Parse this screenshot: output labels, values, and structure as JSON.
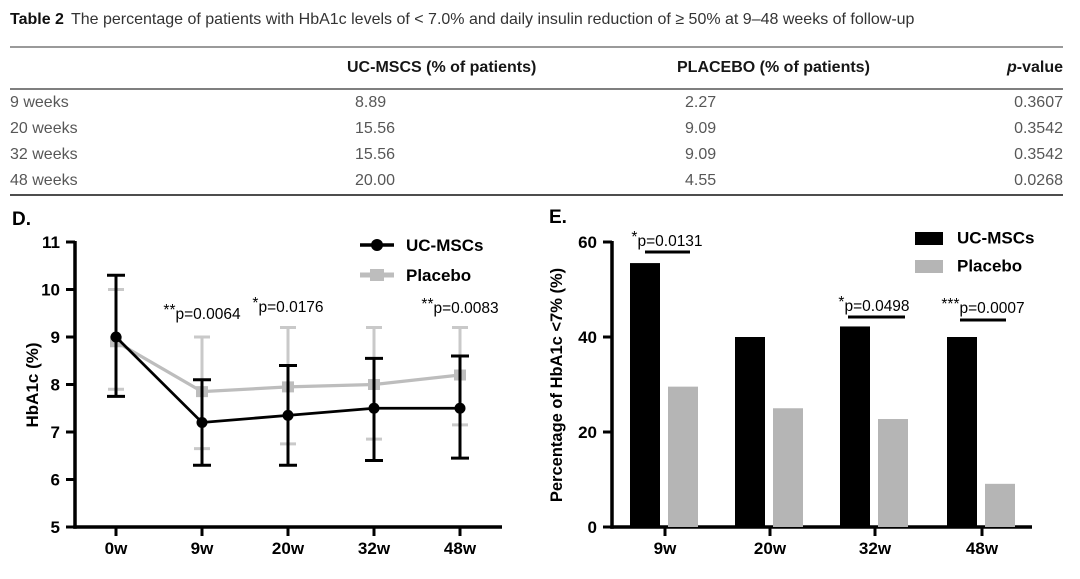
{
  "table": {
    "caption_label": "Table 2",
    "caption_text": "The percentage of patients with HbA1c levels of < 7.0% and daily insulin reduction of ≥ 50% at 9–48 weeks of follow-up",
    "columns": [
      {
        "text": ""
      },
      {
        "text": "UC-MSCS (% of patients)"
      },
      {
        "text": "PLACEBO (% of patients)"
      },
      {
        "text": "p-value",
        "italic_first": true
      }
    ],
    "rows": [
      [
        "9 weeks",
        "8.89",
        "2.27",
        "0.3607"
      ],
      [
        "20 weeks",
        "15.56",
        "9.09",
        "0.3542"
      ],
      [
        "32 weeks",
        "15.56",
        "9.09",
        "0.3542"
      ],
      [
        "48 weeks",
        "20.00",
        "4.55",
        "0.0268"
      ]
    ]
  },
  "chart_data": [
    {
      "type": "line",
      "panel_label": "D.",
      "title": "",
      "xlabel": "",
      "ylabel": "HbA1c (%)",
      "x": [
        "0w",
        "9w",
        "20w",
        "32w",
        "48w"
      ],
      "ylim": [
        5,
        11
      ],
      "yticks": [
        5,
        6,
        7,
        8,
        9,
        10,
        11
      ],
      "grid": false,
      "legend_position": "top-right",
      "series": [
        {
          "name": "UC-MSCs",
          "color": "#000000",
          "marker": "circle",
          "values": [
            9.0,
            7.2,
            7.35,
            7.5,
            7.5
          ],
          "err_upper": [
            10.3,
            8.1,
            8.4,
            8.55,
            8.6
          ],
          "err_lower": [
            7.75,
            6.3,
            6.3,
            6.4,
            6.45
          ]
        },
        {
          "name": "Placebo",
          "color": "#bdbdbd",
          "err_color": "#c9c9c9",
          "marker": "square",
          "values": [
            8.9,
            7.85,
            7.95,
            8.0,
            8.2
          ],
          "err_upper": [
            10.0,
            9.0,
            9.2,
            9.2,
            9.2
          ],
          "err_lower": [
            7.9,
            6.65,
            6.75,
            6.85,
            7.15
          ]
        }
      ],
      "annotations": [
        {
          "text": "**p=0.0064",
          "x": "9w"
        },
        {
          "text": "*p=0.0176",
          "x": "20w"
        },
        {
          "text": "**p=0.0083",
          "x": "48w"
        }
      ]
    },
    {
      "type": "bar",
      "panel_label": "E.",
      "title": "",
      "xlabel": "",
      "ylabel": "Percentage of HbA1c <7% (%)",
      "categories": [
        "9w",
        "20w",
        "32w",
        "48w"
      ],
      "ylim": [
        0,
        60
      ],
      "yticks": [
        0,
        20,
        40,
        60
      ],
      "grid": false,
      "legend_position": "top-right",
      "series": [
        {
          "name": "UC-MSCs",
          "color": "#000000",
          "values": [
            55.56,
            40.0,
            42.22,
            40.0
          ]
        },
        {
          "name": "Placebo",
          "color": "#b5b5b5",
          "values": [
            29.55,
            25.0,
            22.73,
            9.09
          ]
        }
      ],
      "annotations": [
        {
          "text": "*p=0.0131",
          "x": "9w"
        },
        {
          "text": "*p=0.0498",
          "x": "32w"
        },
        {
          "text": "***p=0.0007",
          "x": "48w"
        }
      ]
    }
  ]
}
